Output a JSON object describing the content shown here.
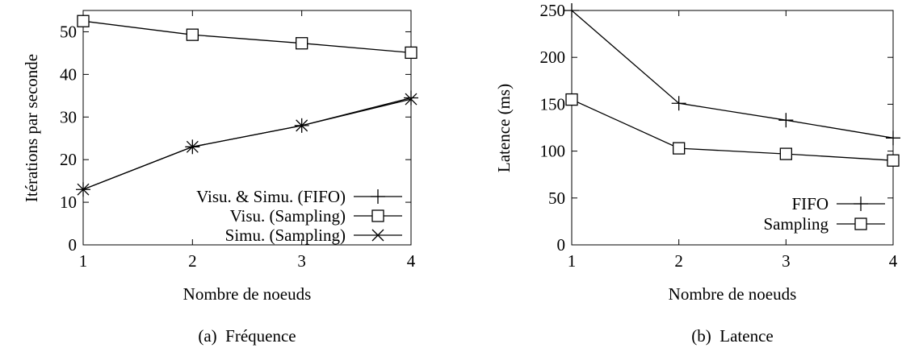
{
  "chart_data": [
    {
      "type": "line",
      "caption": "(a)  Fréquence",
      "xlabel": "Nombre de noeuds",
      "ylabel": "Itérations par seconde",
      "x": [
        1,
        2,
        3,
        4
      ],
      "xlim": [
        1,
        4
      ],
      "ylim": [
        0,
        55
      ],
      "xticks": [
        1,
        2,
        3,
        4
      ],
      "yticks": [
        0,
        10,
        20,
        30,
        40,
        50
      ],
      "grid": false,
      "legend_position": "bottom-right",
      "series": [
        {
          "name": "Visu. & Simu. (FIFO)",
          "marker": "plus",
          "values": [
            13,
            23,
            28,
            34.5
          ]
        },
        {
          "name": "Visu. (Sampling)",
          "marker": "square",
          "values": [
            52.5,
            49.3,
            47.3,
            45.1
          ]
        },
        {
          "name": "Simu. (Sampling)",
          "marker": "cross",
          "values": [
            13,
            23,
            28,
            34.2
          ]
        }
      ]
    },
    {
      "type": "line",
      "caption": "(b)  Latence",
      "xlabel": "Nombre de noeuds",
      "ylabel": "Latence (ms)",
      "x": [
        1,
        2,
        3,
        4
      ],
      "xlim": [
        1,
        4
      ],
      "ylim": [
        0,
        250
      ],
      "xticks": [
        1,
        2,
        3,
        4
      ],
      "yticks": [
        0,
        50,
        100,
        150,
        200,
        250
      ],
      "grid": false,
      "legend_position": "bottom-right",
      "series": [
        {
          "name": "FIFO",
          "marker": "plus",
          "values": [
            250,
            151,
            133,
            114
          ]
        },
        {
          "name": "Sampling",
          "marker": "square",
          "values": [
            155,
            103,
            97,
            90
          ]
        }
      ]
    }
  ]
}
